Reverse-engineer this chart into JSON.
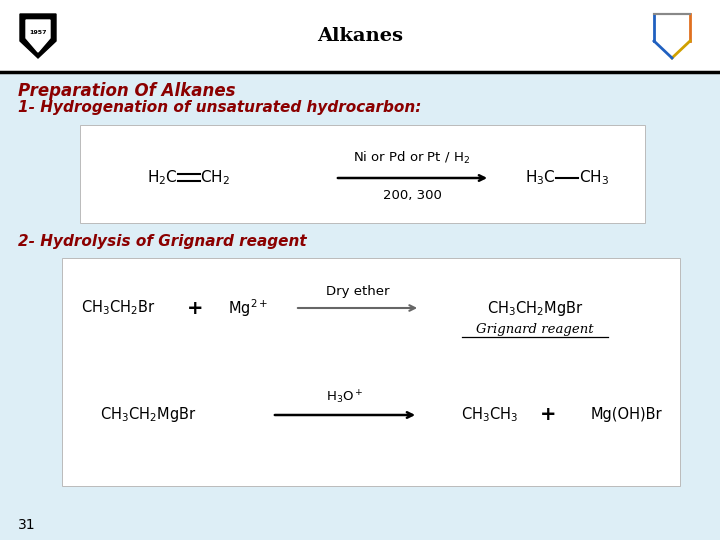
{
  "title": "Alkanes",
  "slide_bg": "#ddeef6",
  "title_color": "#000000",
  "heading_color": "#8b0000",
  "preparation_title": "Preparation Of Alkanes",
  "line1_text": "1- Hydrogenation of unsaturated hydrocarbon:",
  "line2_text": "2- Hydrolysis of Grignard reagent",
  "page_num": "31"
}
